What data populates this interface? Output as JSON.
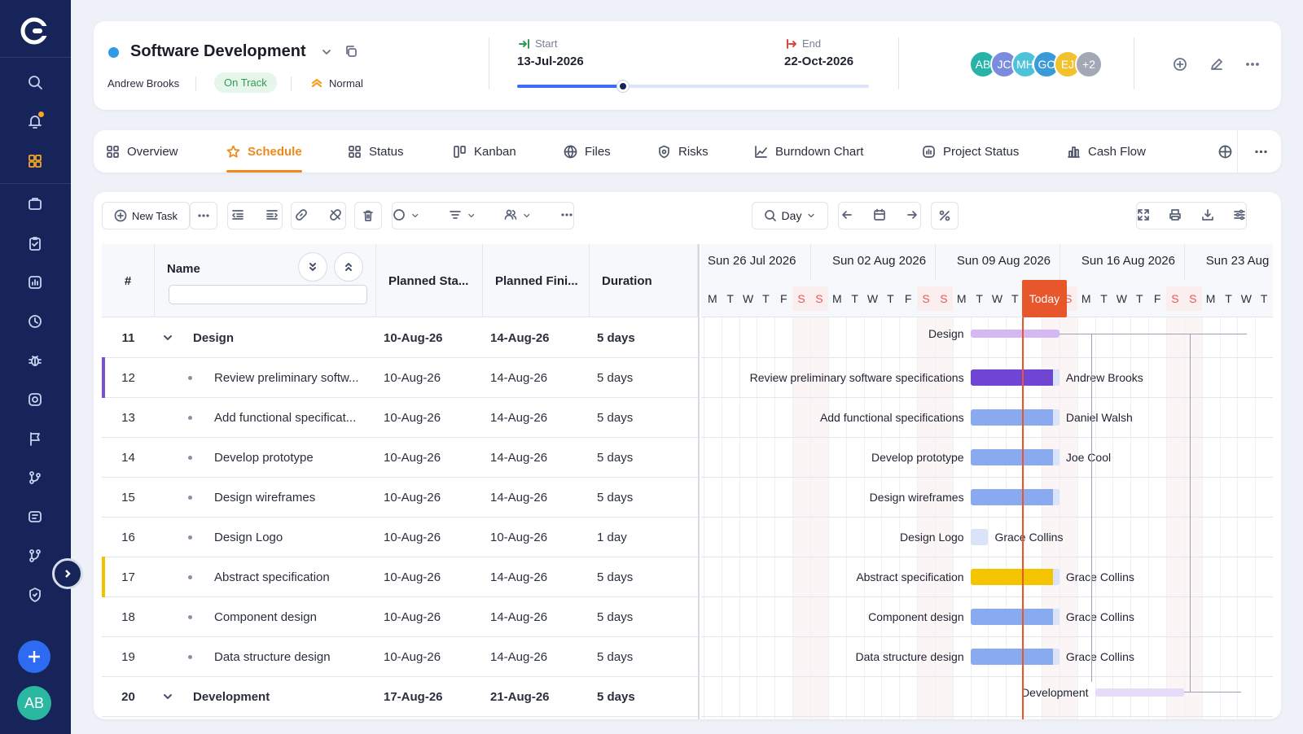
{
  "sidebar": {
    "items": [
      {
        "name": "search-icon"
      },
      {
        "name": "bell-icon"
      },
      {
        "name": "grid-icon"
      },
      {
        "name": "briefcase-icon"
      },
      {
        "name": "clipboard-icon"
      },
      {
        "name": "report-icon"
      },
      {
        "name": "clock-icon"
      },
      {
        "name": "bug-icon"
      },
      {
        "name": "settings-circle-icon"
      },
      {
        "name": "flag-icon"
      },
      {
        "name": "branch-icon"
      },
      {
        "name": "notes-icon"
      },
      {
        "name": "workflow-icon"
      },
      {
        "name": "shield-icon"
      }
    ],
    "user_initials": "AB"
  },
  "project": {
    "title": "Software Development",
    "owner": "Andrew Brooks",
    "status": "On Track",
    "priority": "Normal",
    "start_label": "Start",
    "start_date": "13-Jul-2026",
    "end_label": "End",
    "end_date": "22-Oct-2026",
    "progress_fraction": 0.3,
    "team": [
      {
        "initials": "AB",
        "color": "#27b3a8"
      },
      {
        "initials": "JC",
        "color": "#7b8cde"
      },
      {
        "initials": "MH",
        "color": "#4cc3d9"
      },
      {
        "initials": "GC",
        "color": "#3a9bd8"
      },
      {
        "initials": "EJ",
        "color": "#f2c12e"
      },
      {
        "initials": "+2",
        "color": "#a3a8b5"
      }
    ]
  },
  "tabs": [
    {
      "label": "Overview",
      "icon": "grid-icon"
    },
    {
      "label": "Schedule",
      "icon": "star-icon",
      "active": true
    },
    {
      "label": "Status",
      "icon": "grid-icon"
    },
    {
      "label": "Kanban",
      "icon": "kanban-icon"
    },
    {
      "label": "Files",
      "icon": "globe-icon"
    },
    {
      "label": "Risks",
      "icon": "shield-icon"
    },
    {
      "label": "Burndown Chart",
      "icon": "chart-icon"
    },
    {
      "label": "Project Status",
      "icon": "status-icon"
    },
    {
      "label": "Cash Flow",
      "icon": "bars-icon"
    }
  ],
  "toolbar": {
    "new_task": "New Task",
    "zoom": "Day"
  },
  "grid": {
    "columns": {
      "num": "#",
      "name": "Name",
      "planned_start": "Planned Sta...",
      "planned_finish": "Planned Fini...",
      "duration": "Duration"
    },
    "rows": [
      {
        "id": "11",
        "name": "Design",
        "start": "10-Aug-26",
        "finish": "14-Aug-26",
        "duration": "5 days",
        "group": true
      },
      {
        "id": "12",
        "name": "Review preliminary softw...",
        "start": "10-Aug-26",
        "finish": "14-Aug-26",
        "duration": "5 days",
        "accent": "#7a4fd6"
      },
      {
        "id": "13",
        "name": "Add functional specificat...",
        "start": "10-Aug-26",
        "finish": "14-Aug-26",
        "duration": "5 days"
      },
      {
        "id": "14",
        "name": "Develop prototype",
        "start": "10-Aug-26",
        "finish": "14-Aug-26",
        "duration": "5 days"
      },
      {
        "id": "15",
        "name": "Design wireframes",
        "start": "10-Aug-26",
        "finish": "14-Aug-26",
        "duration": "5 days"
      },
      {
        "id": "16",
        "name": "Design Logo",
        "start": "10-Aug-26",
        "finish": "10-Aug-26",
        "duration": "1 day"
      },
      {
        "id": "17",
        "name": "Abstract specification",
        "start": "10-Aug-26",
        "finish": "14-Aug-26",
        "duration": "5 days",
        "accent": "#f2c200"
      },
      {
        "id": "18",
        "name": "Component design",
        "start": "10-Aug-26",
        "finish": "14-Aug-26",
        "duration": "5 days"
      },
      {
        "id": "19",
        "name": "Data structure design",
        "start": "10-Aug-26",
        "finish": "14-Aug-26",
        "duration": "5 days"
      },
      {
        "id": "20",
        "name": "Development",
        "start": "17-Aug-26",
        "finish": "21-Aug-26",
        "duration": "5 days",
        "group": true
      }
    ]
  },
  "gantt": {
    "weeks": [
      "Sun 26 Jul 2026",
      "Sun 02 Aug 2026",
      "Sun 09 Aug 2026",
      "Sun 16 Aug 2026",
      "Sun 23 Aug"
    ],
    "days": [
      "M",
      "T",
      "W",
      "T",
      "F",
      "S",
      "S",
      "M",
      "T",
      "W",
      "T",
      "F",
      "S",
      "S",
      "M",
      "T",
      "W",
      "T",
      "F",
      "S",
      "S",
      "M",
      "T",
      "W",
      "T",
      "F",
      "S",
      "S",
      "M",
      "T",
      "W",
      "T"
    ],
    "today_label": "Today",
    "today_date": "2026-08-14",
    "bars": [
      {
        "label": "Design",
        "assignee": "",
        "color": "#d4b8f4",
        "start": "2026-08-10",
        "end": "2026-08-14",
        "summary": true
      },
      {
        "label": "Review preliminary software specifications",
        "assignee": "Andrew Brooks",
        "color": "#6f46d4",
        "start": "2026-08-10",
        "end": "2026-08-14"
      },
      {
        "label": "Add functional specifications",
        "assignee": "Daniel Walsh",
        "color": "#8aaaf0",
        "start": "2026-08-10",
        "end": "2026-08-14"
      },
      {
        "label": "Develop prototype",
        "assignee": "Joe Cool",
        "color": "#8aaaf0",
        "start": "2026-08-10",
        "end": "2026-08-14"
      },
      {
        "label": "Design wireframes",
        "assignee": "",
        "color": "#8aaaf0",
        "start": "2026-08-10",
        "end": "2026-08-14"
      },
      {
        "label": "Design Logo",
        "assignee": "Grace Collins",
        "color": "#dbe3f8",
        "start": "2026-08-10",
        "end": "2026-08-10"
      },
      {
        "label": "Abstract specification",
        "assignee": "Grace Collins",
        "color": "#f5c400",
        "start": "2026-08-10",
        "end": "2026-08-14"
      },
      {
        "label": "Component design",
        "assignee": "Grace Collins",
        "color": "#8aaaf0",
        "start": "2026-08-10",
        "end": "2026-08-14"
      },
      {
        "label": "Data structure design",
        "assignee": "Grace Collins",
        "color": "#8aaaf0",
        "start": "2026-08-10",
        "end": "2026-08-14"
      },
      {
        "label": "Development",
        "assignee": "",
        "color": "#e6dcfa",
        "start": "2026-08-17",
        "end": "2026-08-21",
        "summary": true
      }
    ]
  }
}
